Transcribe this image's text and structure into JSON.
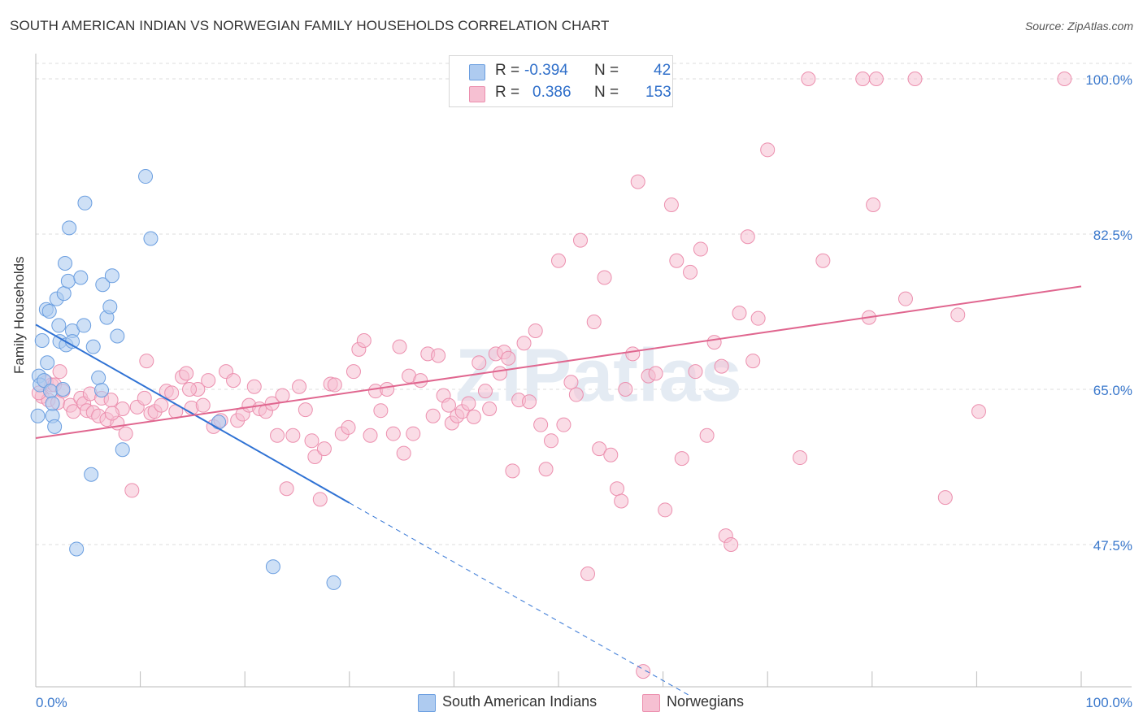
{
  "title": "SOUTH AMERICAN INDIAN VS NORWEGIAN FAMILY HOUSEHOLDS CORRELATION CHART",
  "source": "Source: ZipAtlas.com",
  "watermark": "ZIPatlas",
  "legend": {
    "rows": [
      {
        "r_label": "R =",
        "r_value": "-0.394",
        "n_label": "N =",
        "n_value": "42"
      },
      {
        "r_label": "R =",
        "r_value": "0.386",
        "n_label": "N =",
        "n_value": "153"
      }
    ]
  },
  "bottom_legend": [
    "South American Indians",
    "Norwegians"
  ],
  "colors": {
    "blue_fill": "#aecbf0",
    "blue_stroke": "#6a9ee0",
    "blue_line": "#2f72d4",
    "pink_fill": "#f6c0d2",
    "pink_stroke": "#ec8fae",
    "pink_line": "#e0668f",
    "axis_text": "#3a78cc",
    "grid": "#dddddd"
  },
  "chart_data": {
    "type": "scatter",
    "title": "SOUTH AMERICAN INDIAN VS NORWEGIAN FAMILY HOUSEHOLDS CORRELATION CHART",
    "xlabel": "",
    "ylabel": "Family Households",
    "xlim": [
      0,
      100
    ],
    "ylim": [
      30,
      102
    ],
    "x_tick_labels": [
      "0.0%",
      "100.0%"
    ],
    "y_ticks": [
      47.5,
      65.0,
      82.5,
      100.0
    ],
    "y_tick_labels": [
      "47.5%",
      "65.0%",
      "82.5%",
      "100.0%"
    ],
    "grid": true,
    "legend_position": "top-center",
    "series": [
      {
        "name": "South American Indians",
        "points": [
          [
            0.2,
            62.0
          ],
          [
            0.3,
            66.5
          ],
          [
            0.4,
            65.5
          ],
          [
            0.6,
            70.5
          ],
          [
            0.8,
            66.0
          ],
          [
            1.0,
            74.0
          ],
          [
            1.1,
            68.0
          ],
          [
            1.3,
            73.8
          ],
          [
            1.4,
            64.8
          ],
          [
            1.6,
            62.0
          ],
          [
            1.8,
            60.8
          ],
          [
            2.0,
            75.2
          ],
          [
            2.2,
            72.2
          ],
          [
            2.3,
            70.4
          ],
          [
            2.6,
            65.0
          ],
          [
            2.7,
            75.8
          ],
          [
            2.8,
            79.2
          ],
          [
            2.9,
            70.0
          ],
          [
            3.1,
            77.2
          ],
          [
            3.2,
            83.2
          ],
          [
            3.5,
            71.6
          ],
          [
            3.5,
            70.4
          ],
          [
            3.9,
            47.0
          ],
          [
            4.3,
            77.6
          ],
          [
            4.7,
            86.0
          ],
          [
            5.3,
            55.4
          ],
          [
            5.5,
            69.8
          ],
          [
            6.0,
            66.3
          ],
          [
            6.3,
            64.9
          ],
          [
            6.4,
            76.8
          ],
          [
            6.8,
            73.1
          ],
          [
            7.1,
            74.3
          ],
          [
            7.3,
            77.8
          ],
          [
            7.8,
            71.0
          ],
          [
            8.3,
            58.2
          ],
          [
            10.5,
            89.0
          ],
          [
            11.0,
            82.0
          ],
          [
            17.5,
            61.3
          ],
          [
            22.7,
            45.0
          ],
          [
            28.5,
            43.2
          ],
          [
            1.6,
            63.4
          ],
          [
            4.6,
            72.2
          ]
        ],
        "trend": {
          "x_start": 0.0,
          "y_start": 72.3,
          "x_end": 30.0,
          "y_end": 52.2,
          "dashed_to_x": 62.5,
          "dashed_to_y": 30.5
        }
      },
      {
        "name": "Norwegians",
        "points": [
          [
            0.6,
            64.2
          ],
          [
            1.0,
            65.8
          ],
          [
            1.2,
            63.8
          ],
          [
            1.5,
            65.5
          ],
          [
            1.8,
            65.5
          ],
          [
            2.1,
            63.5
          ],
          [
            2.3,
            67.0
          ],
          [
            2.6,
            64.8
          ],
          [
            3.3,
            63.2
          ],
          [
            3.6,
            62.5
          ],
          [
            4.3,
            64.0
          ],
          [
            4.6,
            63.4
          ],
          [
            4.9,
            62.6
          ],
          [
            5.2,
            64.5
          ],
          [
            5.5,
            62.4
          ],
          [
            6.0,
            62.0
          ],
          [
            6.3,
            64.0
          ],
          [
            6.8,
            61.6
          ],
          [
            7.2,
            63.8
          ],
          [
            7.8,
            61.2
          ],
          [
            8.3,
            62.8
          ],
          [
            8.6,
            60.0
          ],
          [
            9.2,
            53.6
          ],
          [
            9.7,
            63.0
          ],
          [
            10.4,
            64.0
          ],
          [
            10.6,
            68.2
          ],
          [
            11.0,
            62.3
          ],
          [
            11.4,
            62.5
          ],
          [
            12.0,
            63.2
          ],
          [
            12.5,
            64.8
          ],
          [
            13.0,
            64.6
          ],
          [
            13.4,
            62.5
          ],
          [
            14.0,
            66.4
          ],
          [
            14.4,
            66.8
          ],
          [
            14.9,
            62.9
          ],
          [
            15.5,
            65.0
          ],
          [
            16.0,
            63.2
          ],
          [
            16.5,
            66.0
          ],
          [
            17.0,
            60.8
          ],
          [
            17.7,
            61.5
          ],
          [
            18.2,
            67.0
          ],
          [
            18.9,
            66.0
          ],
          [
            19.3,
            61.5
          ],
          [
            19.8,
            62.2
          ],
          [
            20.4,
            63.2
          ],
          [
            20.9,
            65.3
          ],
          [
            21.4,
            62.8
          ],
          [
            22.0,
            62.5
          ],
          [
            22.6,
            63.4
          ],
          [
            23.1,
            59.8
          ],
          [
            23.6,
            64.3
          ],
          [
            24.0,
            53.8
          ],
          [
            24.6,
            59.8
          ],
          [
            25.2,
            65.3
          ],
          [
            25.8,
            62.7
          ],
          [
            26.4,
            59.2
          ],
          [
            26.7,
            57.4
          ],
          [
            27.2,
            52.6
          ],
          [
            27.6,
            58.3
          ],
          [
            28.2,
            65.6
          ],
          [
            28.6,
            65.5
          ],
          [
            29.3,
            60.0
          ],
          [
            29.9,
            60.7
          ],
          [
            30.4,
            67.0
          ],
          [
            30.9,
            69.5
          ],
          [
            31.4,
            70.5
          ],
          [
            32.0,
            59.8
          ],
          [
            32.5,
            64.8
          ],
          [
            33.0,
            62.6
          ],
          [
            33.6,
            65.0
          ],
          [
            34.2,
            60.0
          ],
          [
            34.8,
            69.8
          ],
          [
            35.2,
            57.8
          ],
          [
            35.7,
            66.5
          ],
          [
            36.1,
            60.0
          ],
          [
            36.8,
            66.0
          ],
          [
            37.5,
            69.0
          ],
          [
            38.0,
            62.0
          ],
          [
            38.5,
            68.8
          ],
          [
            39.0,
            64.3
          ],
          [
            39.5,
            63.2
          ],
          [
            39.8,
            61.2
          ],
          [
            40.3,
            62.0
          ],
          [
            40.8,
            62.5
          ],
          [
            41.4,
            63.4
          ],
          [
            41.9,
            61.9
          ],
          [
            42.4,
            68.0
          ],
          [
            43.0,
            64.8
          ],
          [
            43.4,
            62.8
          ],
          [
            44.0,
            69.0
          ],
          [
            44.4,
            66.8
          ],
          [
            44.8,
            69.2
          ],
          [
            45.2,
            68.5
          ],
          [
            45.6,
            55.8
          ],
          [
            46.2,
            63.8
          ],
          [
            46.7,
            70.2
          ],
          [
            47.2,
            63.6
          ],
          [
            47.8,
            71.6
          ],
          [
            48.3,
            61.0
          ],
          [
            48.8,
            56.0
          ],
          [
            49.3,
            59.2
          ],
          [
            50.0,
            79.5
          ],
          [
            50.5,
            61.0
          ],
          [
            51.2,
            65.8
          ],
          [
            51.7,
            64.4
          ],
          [
            52.1,
            81.8
          ],
          [
            52.8,
            44.2
          ],
          [
            53.4,
            72.6
          ],
          [
            53.9,
            58.3
          ],
          [
            54.4,
            77.6
          ],
          [
            55.0,
            57.6
          ],
          [
            55.6,
            53.8
          ],
          [
            56.0,
            52.4
          ],
          [
            56.4,
            65.0
          ],
          [
            57.1,
            69.0
          ],
          [
            57.6,
            88.4
          ],
          [
            58.1,
            33.2
          ],
          [
            58.6,
            66.5
          ],
          [
            59.3,
            66.8
          ],
          [
            60.2,
            51.4
          ],
          [
            60.8,
            85.8
          ],
          [
            61.3,
            79.5
          ],
          [
            61.8,
            57.2
          ],
          [
            62.6,
            78.2
          ],
          [
            63.1,
            67.0
          ],
          [
            63.6,
            80.8
          ],
          [
            64.2,
            59.8
          ],
          [
            64.9,
            70.3
          ],
          [
            65.6,
            67.6
          ],
          [
            66.0,
            48.5
          ],
          [
            66.5,
            47.5
          ],
          [
            67.3,
            73.6
          ],
          [
            68.1,
            82.2
          ],
          [
            68.6,
            68.2
          ],
          [
            69.1,
            73.0
          ],
          [
            70.0,
            92.0
          ],
          [
            73.1,
            57.3
          ],
          [
            73.9,
            100.0
          ],
          [
            75.3,
            79.5
          ],
          [
            79.1,
            100.0
          ],
          [
            79.7,
            73.1
          ],
          [
            80.1,
            85.8
          ],
          [
            80.4,
            100.0
          ],
          [
            83.2,
            75.2
          ],
          [
            84.1,
            100.0
          ],
          [
            87.0,
            52.8
          ],
          [
            88.2,
            73.4
          ],
          [
            90.2,
            62.5
          ],
          [
            98.4,
            100.0
          ],
          [
            0.3,
            64.6
          ],
          [
            7.3,
            62.3
          ],
          [
            14.7,
            65.0
          ]
        ],
        "trend": {
          "x_start": 0.0,
          "y_start": 59.5,
          "x_end": 100.0,
          "y_end": 76.6
        }
      }
    ]
  }
}
